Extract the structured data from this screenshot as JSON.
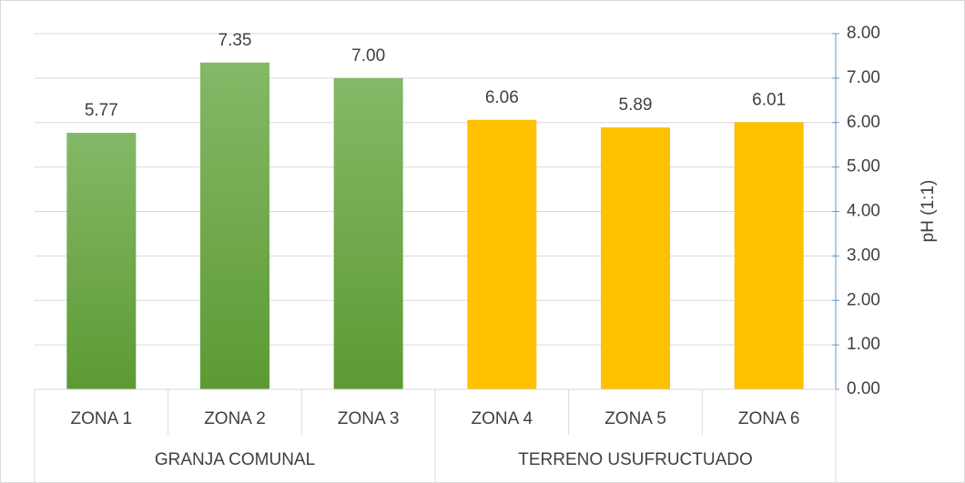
{
  "chart_data": {
    "type": "bar",
    "y_axis_label": "pH (1:1)",
    "categories": [
      "ZONA 1",
      "ZONA 2",
      "ZONA 3",
      "ZONA 4",
      "ZONA 5",
      "ZONA 6"
    ],
    "groups": [
      {
        "name": "GRANJA COMUNAL",
        "span": 3
      },
      {
        "name": "TERRENO USUFRUCTUADO",
        "span": 3
      }
    ],
    "values": [
      5.77,
      7.35,
      7.0,
      6.06,
      5.89,
      6.01
    ],
    "value_labels": [
      "5.77",
      "7.35",
      "7.00",
      "6.06",
      "5.89",
      "6.01"
    ],
    "colors": [
      "#70ad47",
      "#70ad47",
      "#70ad47",
      "#ffc000",
      "#ffc000",
      "#ffc000"
    ],
    "ylim": [
      0,
      8
    ],
    "yticks": [
      {
        "value": 0,
        "label": "0.00"
      },
      {
        "value": 1,
        "label": "1.00"
      },
      {
        "value": 2,
        "label": "2.00"
      },
      {
        "value": 3,
        "label": "3.00"
      },
      {
        "value": 4,
        "label": "4.00"
      },
      {
        "value": 5,
        "label": "5.00"
      },
      {
        "value": 6,
        "label": "6.00"
      },
      {
        "value": 7,
        "label": "7.00"
      },
      {
        "value": 8,
        "label": "8.00"
      }
    ],
    "y_axis_side": "right",
    "grid": true
  }
}
